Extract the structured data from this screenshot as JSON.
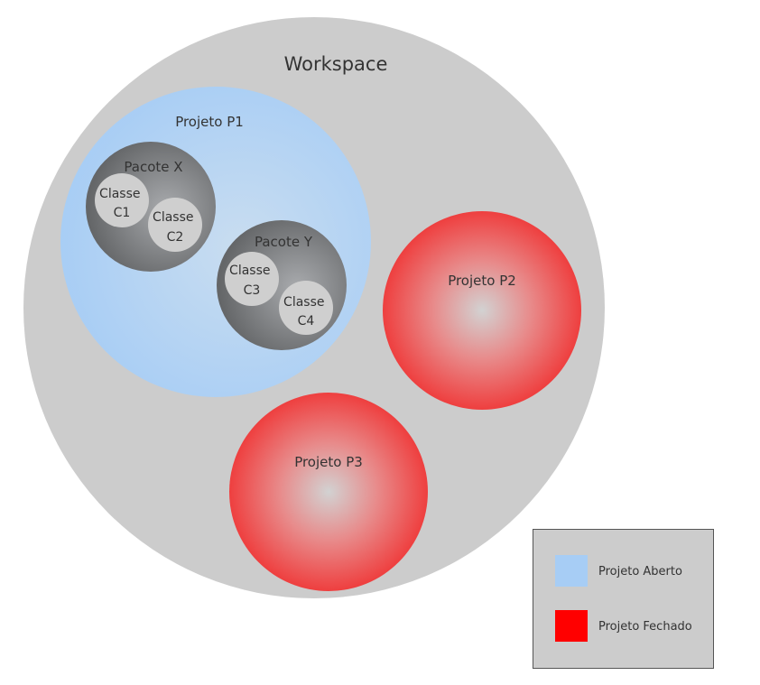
{
  "workspace": {
    "label": "Workspace"
  },
  "projects": [
    {
      "label": "Projeto P1",
      "status": "open",
      "packages": [
        {
          "label": "Pacote X",
          "classes": [
            {
              "line1": "Classe",
              "line2": "C1"
            },
            {
              "line1": "Classe",
              "line2": "C2"
            }
          ]
        },
        {
          "label": "Pacote Y",
          "classes": [
            {
              "line1": "Classe",
              "line2": "C3"
            },
            {
              "line1": "Classe",
              "line2": "C4"
            }
          ]
        }
      ]
    },
    {
      "label": "Projeto P2",
      "status": "closed"
    },
    {
      "label": "Projeto P3",
      "status": "closed"
    }
  ],
  "legend": {
    "open_label": "Projeto Aberto",
    "closed_label": "Projeto Fechado"
  },
  "colors": {
    "workspace": "#cccccc",
    "open": "#a7cdf5",
    "closed": "#ff0000",
    "package": "#6e6e6e",
    "class": "#cfcfcf"
  }
}
